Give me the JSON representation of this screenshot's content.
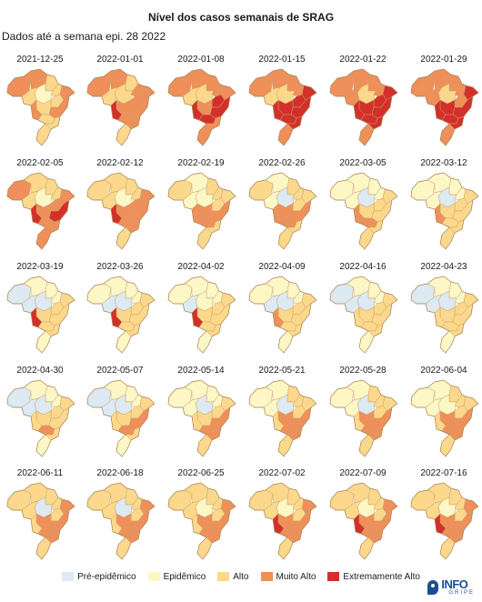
{
  "title": "Nível dos casos semanais de SRAG",
  "subtitle": "Dados até a semana epi. 28 2022",
  "logo": {
    "main": "INFO",
    "sub": "GRIPE"
  },
  "legend": [
    {
      "label": "Pré-epidêmico",
      "color": "#dde9f3"
    },
    {
      "label": "Epidêmico",
      "color": "#fdf7c6"
    },
    {
      "label": "Alto",
      "color": "#fbd88b"
    },
    {
      "label": "Muito Alto",
      "color": "#ef8f5a"
    },
    {
      "label": "Extremamente Alto",
      "color": "#d3302b"
    }
  ],
  "panels": [
    {
      "date": "2021-12-25",
      "levels": [
        3,
        3,
        2,
        1,
        2,
        2,
        3,
        2,
        2,
        3,
        3,
        2,
        2,
        2
      ]
    },
    {
      "date": "2022-01-01",
      "levels": [
        3,
        3,
        2,
        2,
        2,
        3,
        3,
        3,
        3,
        4,
        3,
        3,
        3,
        2
      ]
    },
    {
      "date": "2022-01-08",
      "levels": [
        3,
        3,
        3,
        2,
        2,
        3,
        3,
        4,
        3,
        4,
        4,
        4,
        3,
        3
      ]
    },
    {
      "date": "2022-01-15",
      "levels": [
        3,
        3,
        3,
        2,
        2,
        3,
        4,
        4,
        4,
        4,
        4,
        4,
        4,
        3
      ]
    },
    {
      "date": "2022-01-22",
      "levels": [
        3,
        3,
        3,
        2,
        3,
        3,
        4,
        4,
        4,
        4,
        4,
        4,
        4,
        3
      ]
    },
    {
      "date": "2022-01-29",
      "levels": [
        3,
        3,
        3,
        2,
        3,
        3,
        4,
        3,
        4,
        4,
        4,
        4,
        4,
        3
      ]
    },
    {
      "date": "2022-02-05",
      "levels": [
        3,
        2,
        2,
        1,
        2,
        2,
        3,
        3,
        3,
        4,
        4,
        3,
        3,
        3
      ]
    },
    {
      "date": "2022-02-12",
      "levels": [
        2,
        2,
        2,
        1,
        2,
        2,
        3,
        3,
        3,
        4,
        3,
        3,
        3,
        2
      ]
    },
    {
      "date": "2022-02-19",
      "levels": [
        2,
        1,
        2,
        1,
        1,
        2,
        2,
        2,
        3,
        3,
        3,
        3,
        2,
        2
      ]
    },
    {
      "date": "2022-02-26",
      "levels": [
        2,
        1,
        2,
        0,
        1,
        2,
        2,
        2,
        3,
        3,
        3,
        3,
        2,
        2
      ]
    },
    {
      "date": "2022-03-05",
      "levels": [
        1,
        1,
        1,
        0,
        1,
        1,
        2,
        2,
        2,
        3,
        2,
        3,
        2,
        2
      ]
    },
    {
      "date": "2022-03-12",
      "levels": [
        1,
        1,
        1,
        0,
        1,
        1,
        2,
        2,
        2,
        3,
        2,
        2,
        2,
        2
      ]
    },
    {
      "date": "2022-03-19",
      "levels": [
        0,
        1,
        1,
        0,
        0,
        1,
        2,
        2,
        2,
        4,
        2,
        2,
        2,
        1
      ]
    },
    {
      "date": "2022-03-26",
      "levels": [
        1,
        1,
        1,
        0,
        0,
        1,
        2,
        2,
        2,
        4,
        2,
        2,
        2,
        1
      ]
    },
    {
      "date": "2022-04-02",
      "levels": [
        1,
        1,
        1,
        1,
        0,
        1,
        2,
        2,
        2,
        4,
        2,
        2,
        2,
        1
      ]
    },
    {
      "date": "2022-04-09",
      "levels": [
        1,
        1,
        1,
        0,
        0,
        1,
        2,
        2,
        2,
        3,
        2,
        2,
        2,
        1
      ]
    },
    {
      "date": "2022-04-16",
      "levels": [
        0,
        1,
        1,
        0,
        0,
        1,
        2,
        2,
        2,
        2,
        2,
        2,
        2,
        1
      ]
    },
    {
      "date": "2022-04-23",
      "levels": [
        0,
        1,
        1,
        0,
        0,
        1,
        2,
        2,
        2,
        2,
        2,
        2,
        2,
        1
      ]
    },
    {
      "date": "2022-04-30",
      "levels": [
        0,
        1,
        1,
        0,
        0,
        1,
        2,
        2,
        2,
        2,
        2,
        3,
        2,
        1
      ]
    },
    {
      "date": "2022-05-07",
      "levels": [
        0,
        1,
        1,
        0,
        0,
        1,
        2,
        2,
        2,
        2,
        3,
        3,
        2,
        1
      ]
    },
    {
      "date": "2022-05-14",
      "levels": [
        1,
        1,
        1,
        0,
        1,
        1,
        2,
        2,
        2,
        2,
        3,
        3,
        3,
        2
      ]
    },
    {
      "date": "2022-05-21",
      "levels": [
        1,
        1,
        2,
        0,
        1,
        2,
        2,
        2,
        3,
        2,
        3,
        3,
        3,
        2
      ]
    },
    {
      "date": "2022-05-28",
      "levels": [
        1,
        1,
        2,
        0,
        1,
        2,
        2,
        2,
        3,
        2,
        3,
        3,
        3,
        2
      ]
    },
    {
      "date": "2022-06-04",
      "levels": [
        1,
        1,
        2,
        1,
        1,
        2,
        2,
        2,
        3,
        2,
        3,
        3,
        3,
        2
      ]
    },
    {
      "date": "2022-06-11",
      "levels": [
        2,
        2,
        2,
        0,
        2,
        2,
        3,
        2,
        3,
        2,
        3,
        3,
        3,
        2
      ]
    },
    {
      "date": "2022-06-18",
      "levels": [
        2,
        2,
        2,
        0,
        2,
        2,
        3,
        2,
        3,
        2,
        3,
        3,
        3,
        2
      ]
    },
    {
      "date": "2022-06-25",
      "levels": [
        2,
        2,
        2,
        1,
        2,
        2,
        3,
        2,
        3,
        2,
        3,
        3,
        3,
        2
      ]
    },
    {
      "date": "2022-07-02",
      "levels": [
        2,
        2,
        2,
        1,
        2,
        2,
        3,
        2,
        3,
        4,
        3,
        3,
        3,
        2
      ]
    },
    {
      "date": "2022-07-09",
      "levels": [
        2,
        2,
        2,
        1,
        2,
        2,
        3,
        2,
        3,
        4,
        3,
        3,
        3,
        2
      ]
    },
    {
      "date": "2022-07-16",
      "levels": [
        2,
        2,
        2,
        1,
        2,
        2,
        3,
        2,
        3,
        4,
        3,
        3,
        3,
        2
      ]
    }
  ]
}
